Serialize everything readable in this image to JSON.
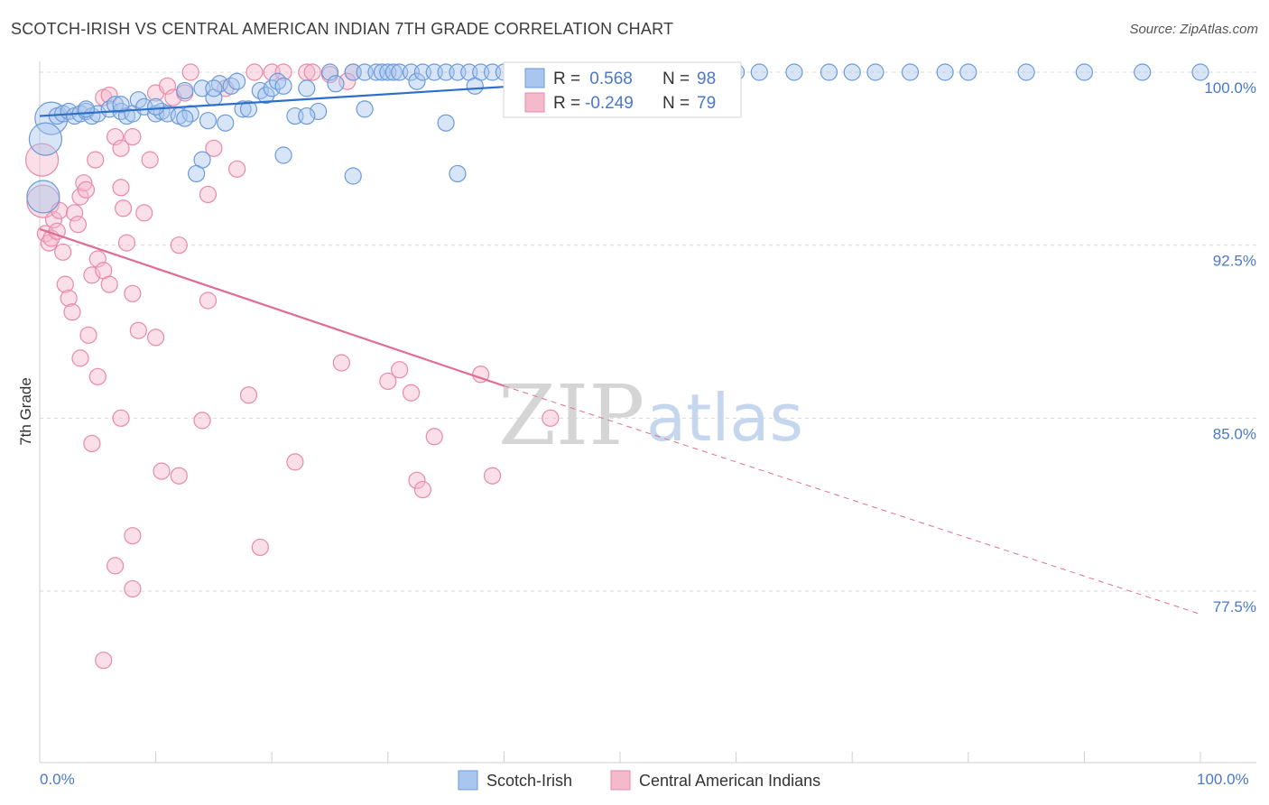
{
  "title": "SCOTCH-IRISH VS CENTRAL AMERICAN INDIAN 7TH GRADE CORRELATION CHART",
  "source": "Source: ZipAtlas.com",
  "watermark": {
    "zip": "ZIP",
    "atlas": "atlas"
  },
  "colors": {
    "blue_fill": "#a9c6ee",
    "blue_stroke": "#6c9ad8",
    "blue_line": "#2f6fc9",
    "pink_fill": "#f5b9cc",
    "pink_stroke": "#e889a8",
    "pink_line": "#e06d97",
    "grid": "#d9d9d9",
    "axis_text": "#4a78c8"
  },
  "legend": {
    "rows": [
      {
        "r_label": "R =",
        "r_value": " 0.568",
        "n_label": "N =",
        "n_value": "98"
      },
      {
        "r_label": "R =",
        "r_value": "-0.249",
        "n_label": "N =",
        "n_value": "79"
      }
    ]
  },
  "bottom_legend": {
    "items": [
      "Scotch-Irish",
      "Central American Indians"
    ]
  },
  "chart_data": {
    "type": "scatter",
    "xlabel": "",
    "ylabel": "7th Grade",
    "xlim": [
      0,
      100
    ],
    "ylim": [
      70.0,
      100.3
    ],
    "x_tick_labels": {
      "left": "0.0%",
      "right": "100.0%"
    },
    "y_ticks": [
      100.0,
      92.5,
      85.0,
      77.5
    ],
    "y_tick_labels": [
      "100.0%",
      "92.5%",
      "85.0%",
      "77.5%"
    ],
    "grid": "horizontal dashed",
    "legend_placement": "top-center",
    "series": [
      {
        "name": "Scotch-Irish",
        "color": "blue",
        "trend": {
          "x0": 0,
          "y0": 98.1,
          "x1": 60,
          "y1": 100.0,
          "dashed_to": null
        },
        "points": [
          [
            1,
            98.0
          ],
          [
            1.5,
            98.1
          ],
          [
            2,
            98.2
          ],
          [
            2.5,
            98.3
          ],
          [
            3,
            98.1
          ],
          [
            3.5,
            98.2
          ],
          [
            4,
            98.3
          ],
          [
            4.5,
            98.1
          ],
          [
            5,
            98.2
          ],
          [
            6,
            98.4
          ],
          [
            6.5,
            98.6
          ],
          [
            7,
            98.3
          ],
          [
            7.5,
            98.1
          ],
          [
            8,
            98.2
          ],
          [
            8.5,
            98.8
          ],
          [
            9,
            98.5
          ],
          [
            10,
            98.2
          ],
          [
            10.5,
            98.3
          ],
          [
            11,
            98.2
          ],
          [
            12,
            98.1
          ],
          [
            12.5,
            99.2
          ],
          [
            13,
            98.2
          ],
          [
            12.5,
            98.0
          ],
          [
            14,
            99.3
          ],
          [
            14.5,
            97.9
          ],
          [
            15,
            98.9
          ],
          [
            15.5,
            99.5
          ],
          [
            16,
            97.8
          ],
          [
            16.5,
            99.4
          ],
          [
            17,
            99.6
          ],
          [
            17.5,
            98.4
          ],
          [
            18,
            98.4
          ],
          [
            19,
            99.2
          ],
          [
            19.5,
            99.0
          ],
          [
            20,
            99.3
          ],
          [
            20.5,
            99.6
          ],
          [
            21,
            99.4
          ],
          [
            22,
            98.1
          ],
          [
            23,
            99.3
          ],
          [
            24,
            98.3
          ],
          [
            25,
            100.0
          ],
          [
            25.5,
            99.5
          ],
          [
            27,
            100.0
          ],
          [
            28,
            100.0
          ],
          [
            29,
            100.0
          ],
          [
            29.5,
            100.0
          ],
          [
            30,
            100.0
          ],
          [
            30.5,
            100.0
          ],
          [
            31,
            100.0
          ],
          [
            32,
            100.0
          ],
          [
            32.5,
            99.6
          ],
          [
            33,
            100.0
          ],
          [
            34,
            100.0
          ],
          [
            35,
            100.0
          ],
          [
            36,
            100.0
          ],
          [
            37,
            100.0
          ],
          [
            38,
            100.0
          ],
          [
            37.5,
            99.4
          ],
          [
            39,
            100.0
          ],
          [
            40,
            100.0
          ],
          [
            41,
            100.0
          ],
          [
            42,
            100.0
          ],
          [
            43,
            100.0
          ],
          [
            44,
            100.0
          ],
          [
            45,
            100.0
          ],
          [
            46,
            100.0
          ],
          [
            47,
            100.0
          ],
          [
            50,
            100.0
          ],
          [
            52,
            100.0
          ],
          [
            53,
            100.0
          ],
          [
            55,
            100.0
          ],
          [
            57,
            100.0
          ],
          [
            60,
            100.0
          ],
          [
            62,
            100.0
          ],
          [
            65,
            100.0
          ],
          [
            68,
            100.0
          ],
          [
            70,
            100.0
          ],
          [
            72,
            100.0
          ],
          [
            75,
            100.0
          ],
          [
            78,
            100.0
          ],
          [
            80,
            100.0
          ],
          [
            85,
            100.0
          ],
          [
            90,
            100.0
          ],
          [
            95,
            100.0
          ],
          [
            100,
            100.0
          ],
          [
            0.5,
            97.1
          ],
          [
            0.3,
            94.6
          ],
          [
            14,
            96.2
          ],
          [
            13.5,
            95.6
          ],
          [
            21,
            96.4
          ],
          [
            27,
            95.5
          ],
          [
            36,
            95.6
          ],
          [
            28,
            98.4
          ],
          [
            35,
            97.8
          ],
          [
            23,
            98.1
          ],
          [
            7,
            98.6
          ],
          [
            4,
            98.4
          ],
          [
            10,
            98.5
          ],
          [
            15,
            99.3
          ]
        ],
        "sizes": {
          "large": [
            [
              0.5,
              97.1
            ],
            [
              0.3,
              94.6
            ],
            [
              1,
              98.0
            ]
          ]
        }
      },
      {
        "name": "Central American Indians",
        "color": "pink",
        "trend": {
          "x0": 0,
          "y0": 93.2,
          "x1": 40,
          "y1": 86.4,
          "dashed_to": {
            "x": 100,
            "y": 76.5
          }
        },
        "points": [
          [
            0.2,
            96.2
          ],
          [
            0.3,
            94.4
          ],
          [
            0.5,
            93.0
          ],
          [
            0.8,
            92.6
          ],
          [
            1,
            92.8
          ],
          [
            1.2,
            93.6
          ],
          [
            1.5,
            93.1
          ],
          [
            1.7,
            94.0
          ],
          [
            2,
            92.2
          ],
          [
            2.2,
            90.8
          ],
          [
            2.5,
            90.2
          ],
          [
            2.8,
            89.6
          ],
          [
            3,
            93.9
          ],
          [
            3.3,
            93.4
          ],
          [
            3.5,
            94.6
          ],
          [
            3.8,
            95.2
          ],
          [
            4,
            94.9
          ],
          [
            4.2,
            88.6
          ],
          [
            3.5,
            87.6
          ],
          [
            4.5,
            91.2
          ],
          [
            5,
            91.9
          ],
          [
            5.5,
            91.4
          ],
          [
            6,
            90.8
          ],
          [
            4.5,
            83.9
          ],
          [
            5,
            86.8
          ],
          [
            4.8,
            96.2
          ],
          [
            5.5,
            98.9
          ],
          [
            6,
            99.0
          ],
          [
            6.5,
            97.2
          ],
          [
            7,
            95.0
          ],
          [
            7.2,
            94.1
          ],
          [
            7.5,
            92.6
          ],
          [
            8,
            90.4
          ],
          [
            8.5,
            88.8
          ],
          [
            9,
            93.9
          ],
          [
            7,
            96.7
          ],
          [
            8,
            97.2
          ],
          [
            9.5,
            96.2
          ],
          [
            10,
            99.1
          ],
          [
            11,
            99.4
          ],
          [
            11.5,
            98.9
          ],
          [
            12,
            92.5
          ],
          [
            12.5,
            99.1
          ],
          [
            13,
            100.0
          ],
          [
            14,
            84.9
          ],
          [
            14.5,
            94.7
          ],
          [
            14.5,
            90.1
          ],
          [
            15,
            96.7
          ],
          [
            16,
            99.3
          ],
          [
            17,
            95.8
          ],
          [
            18,
            86.0
          ],
          [
            18.5,
            100.0
          ],
          [
            19,
            79.4
          ],
          [
            20,
            100.0
          ],
          [
            21,
            100.0
          ],
          [
            22,
            83.1
          ],
          [
            23,
            100.0
          ],
          [
            10,
            88.5
          ],
          [
            7,
            85.0
          ],
          [
            10.5,
            82.7
          ],
          [
            12,
            82.5
          ],
          [
            8,
            79.9
          ],
          [
            6.5,
            78.6
          ],
          [
            8,
            77.6
          ],
          [
            5.5,
            74.5
          ],
          [
            26,
            87.4
          ],
          [
            27,
            100.0
          ],
          [
            30,
            86.6
          ],
          [
            31,
            87.1
          ],
          [
            32,
            86.1
          ],
          [
            32.5,
            82.3
          ],
          [
            33,
            81.9
          ],
          [
            34,
            84.2
          ],
          [
            38,
            86.9
          ],
          [
            39,
            82.5
          ],
          [
            44,
            85.0
          ],
          [
            23.5,
            100.0
          ],
          [
            25,
            99.9
          ],
          [
            26.5,
            99.6
          ]
        ],
        "sizes": {
          "large": [
            [
              0.2,
              96.2
            ],
            [
              0.3,
              94.4
            ]
          ]
        }
      }
    ]
  }
}
